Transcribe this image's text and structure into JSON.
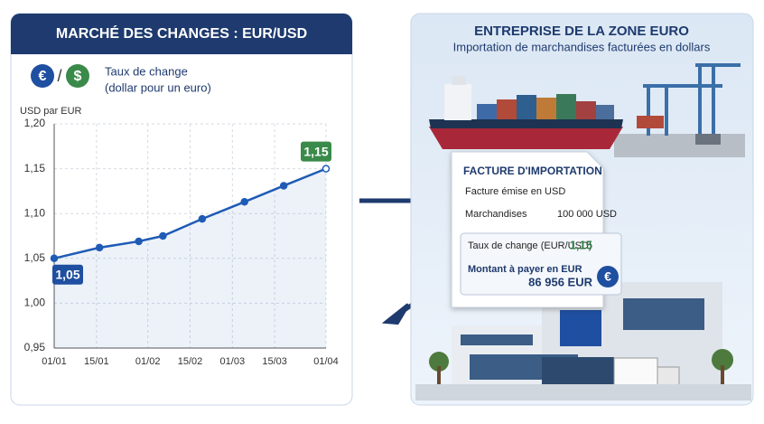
{
  "chart_data": {
    "type": "line",
    "title": "MARCHÉ DES CHANGES : EUR/USD",
    "currency_icons": [
      "€",
      "$"
    ],
    "legend_title": "Taux de change",
    "legend_subtitle": "(dollar pour un euro)",
    "y_label": "USD par EUR",
    "x": [
      0,
      15,
      28,
      36,
      49,
      63,
      76,
      90
    ],
    "series": [
      {
        "name": "Taux de change",
        "color": "#1f5bb5",
        "values": [
          1.05,
          1.062,
          1.069,
          1.075,
          1.094,
          1.113,
          1.131,
          1.15
        ],
        "value_labels": [
          "1,05",
          null,
          null,
          null,
          null,
          null,
          null,
          "1,15"
        ]
      }
    ],
    "xlim": [
      0,
      90
    ],
    "xticks": [
      {
        "value": 0,
        "label": "01/01"
      },
      {
        "value": 14,
        "label": "15/01"
      },
      {
        "value": 31,
        "label": "01/02"
      },
      {
        "value": 45,
        "label": "15/02"
      },
      {
        "value": 59,
        "label": "01/03"
      },
      {
        "value": 73,
        "label": "15/03"
      },
      {
        "value": 90,
        "label": "01/04"
      }
    ],
    "ylim": [
      0.95,
      1.2
    ],
    "yticks": [
      {
        "value": 0.95,
        "label": "0,95"
      },
      {
        "value": 1.0,
        "label": "1,00"
      },
      {
        "value": 1.05,
        "label": "1,05"
      },
      {
        "value": 1.1,
        "label": "1,10"
      },
      {
        "value": 1.15,
        "label": "1,15"
      },
      {
        "value": 1.2,
        "label": "1,20"
      }
    ],
    "grid": true
  },
  "company": {
    "title": "ENTREPRISE DE LA ZONE EURO",
    "subtitle": "Importation de marchandises facturées en dollars"
  },
  "invoice": {
    "title": "FACTURE D'IMPORTATION",
    "currency_note": "Facture émise en USD",
    "goods_label": "Marchandises",
    "goods_amount": "100 000 USD",
    "rate_label": "Taux de change (EUR/USD)",
    "rate_value": "1,15",
    "pay_label": "Montant à payer en EUR",
    "pay_amount": "86 956 EUR",
    "icon": "€"
  }
}
